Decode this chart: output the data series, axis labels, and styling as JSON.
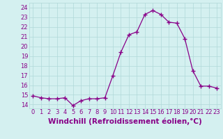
{
  "x": [
    0,
    1,
    2,
    3,
    4,
    5,
    6,
    7,
    8,
    9,
    10,
    11,
    12,
    13,
    14,
    15,
    16,
    17,
    18,
    19,
    20,
    21,
    22,
    23
  ],
  "y": [
    14.9,
    14.7,
    14.6,
    14.6,
    14.7,
    13.9,
    14.4,
    14.6,
    14.6,
    14.7,
    17.0,
    19.4,
    21.2,
    21.5,
    23.3,
    23.7,
    23.3,
    22.5,
    22.4,
    20.8,
    17.5,
    15.9,
    15.9,
    15.7
  ],
  "line_color": "#880088",
  "marker": "+",
  "marker_size": 4,
  "marker_lw": 1.0,
  "background_color": "#d4f0f0",
  "grid_color": "#b0d8d8",
  "xlabel": "Windchill (Refroidissement éolien,°C)",
  "xlabel_color": "#880088",
  "ylabel_ticks": [
    14,
    15,
    16,
    17,
    18,
    19,
    20,
    21,
    22,
    23,
    24
  ],
  "ylim": [
    13.6,
    24.5
  ],
  "xlim": [
    -0.5,
    23.5
  ],
  "tick_color": "#880088",
  "tick_fontsize": 6,
  "xlabel_fontsize": 7.5
}
